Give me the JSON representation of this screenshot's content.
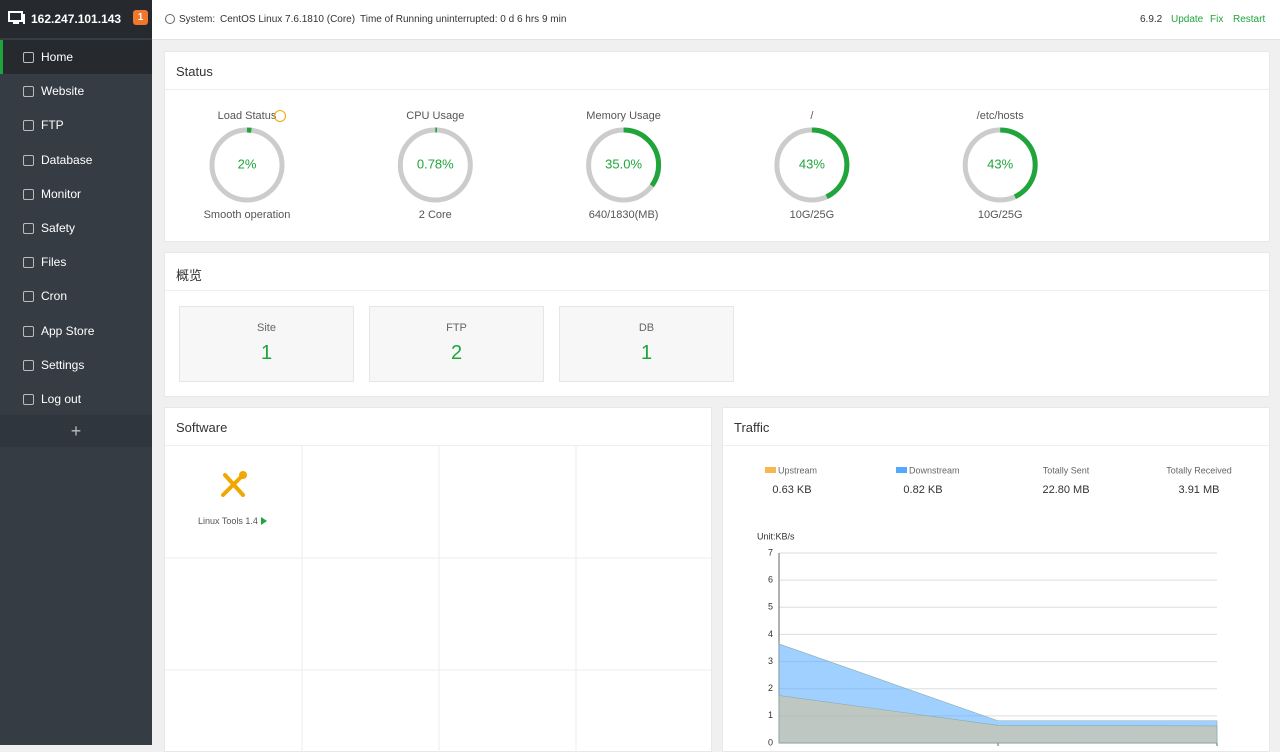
{
  "sidebar": {
    "ip": "162.247.101.143",
    "badge": "1",
    "menu": [
      "Home",
      "Website",
      "FTP",
      "Database",
      "Monitor",
      "Safety",
      "Files",
      "Cron",
      "App Store",
      "Settings",
      "Log out"
    ],
    "add": "+"
  },
  "topbar": {
    "system_label": "System:",
    "system": "CentOS Linux 7.6.1810 (Core)",
    "uptime": "Time of Running uninterrupted: 0 d 6 hrs 9 min",
    "version": "6.9.2",
    "actions": [
      "Update",
      "Fix",
      "Restart"
    ]
  },
  "status": {
    "title": "Status",
    "gauges": [
      {
        "label": "Load Status",
        "value": 2,
        "value_label": "2%",
        "caption": "Smooth operation"
      },
      {
        "label": "CPU Usage",
        "value": 0.78,
        "value_label": "0.78%",
        "caption": "2 Core"
      },
      {
        "label": "Memory Usage",
        "value": 35.0,
        "value_label": "35.0%",
        "caption": "640/1830(MB)"
      },
      {
        "label": "/",
        "value": 43,
        "value_label": "43%",
        "caption": "10G/25G"
      },
      {
        "label": "/etc/hosts",
        "value": 43,
        "value_label": "43%",
        "caption": "10G/25G"
      }
    ]
  },
  "overview": {
    "title": "概览",
    "cards": [
      {
        "label": "Site",
        "value": "1"
      },
      {
        "label": "FTP",
        "value": "2"
      },
      {
        "label": "DB",
        "value": "1"
      }
    ]
  },
  "software": {
    "title": "Software",
    "items": [
      "Linux Tools 1.4"
    ]
  },
  "traffic": {
    "title": "Traffic",
    "current": [
      "0.63 KB",
      "0.82 KB"
    ],
    "totals": [
      {
        "label": "Totally Sent",
        "value": "22.80 MB"
      },
      {
        "label": "Totally Received",
        "value": "3.91 MB"
      }
    ],
    "chart_data": {
      "type": "area",
      "y_label": "Unit:KB/s",
      "categories": [
        null,
        null,
        null
      ],
      "series": [
        {
          "name": "Upstream",
          "color": "#f7b851",
          "values": [
            1.75,
            0.65,
            0.63
          ]
        },
        {
          "name": "Downstream",
          "color": "#52a9ff",
          "values": [
            3.65,
            0.82,
            0.82
          ]
        }
      ],
      "ylim": [
        0,
        7
      ],
      "yticks": [
        0,
        1,
        2,
        3,
        4,
        5,
        6,
        7
      ],
      "grid": true
    }
  }
}
